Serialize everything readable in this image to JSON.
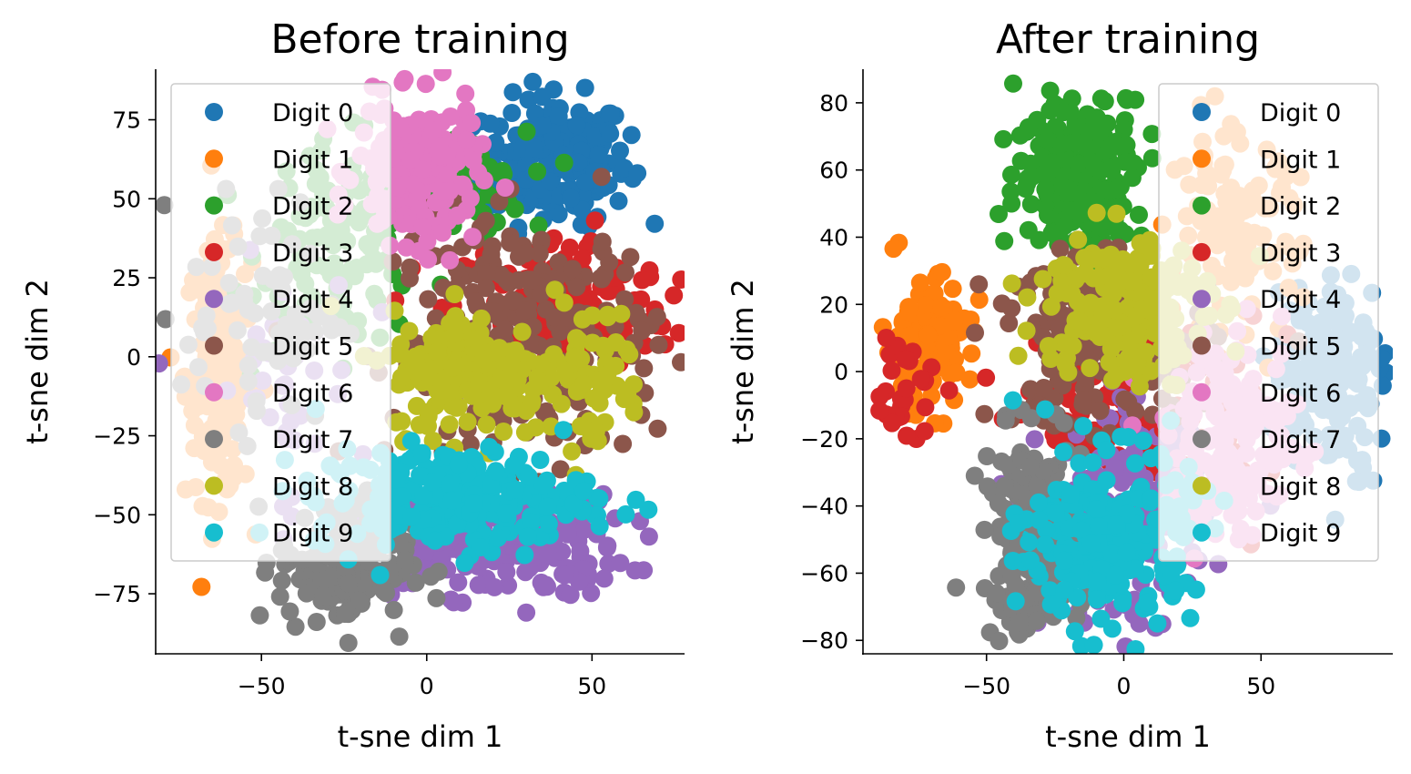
{
  "chart_data": [
    {
      "type": "scatter",
      "title": "Before training",
      "xlabel": "t-sne dim 1",
      "ylabel": "t-sne dim 2",
      "xlim": [
        -82,
        78
      ],
      "ylim": [
        -94,
        91
      ],
      "xticks": [
        {
          "v": -50,
          "label": "−50"
        },
        {
          "v": 0,
          "label": "0"
        },
        {
          "v": 50,
          "label": "50"
        }
      ],
      "yticks": [
        {
          "v": 75,
          "label": "75"
        },
        {
          "v": 50,
          "label": "50"
        },
        {
          "v": 25,
          "label": "25"
        },
        {
          "v": 0,
          "label": "0"
        },
        {
          "v": -25,
          "label": "−25"
        },
        {
          "v": -50,
          "label": "−50"
        },
        {
          "v": -75,
          "label": "−75"
        }
      ],
      "legend_position": "upper-left",
      "series": [
        {
          "name": "Digit 0",
          "color": "#1f77b4",
          "clusters": [
            {
              "cx": 39,
              "cy": 62,
              "sx": 11,
              "sy": 10,
              "n": 220
            }
          ]
        },
        {
          "name": "Digit 1",
          "color": "#ff7f0e",
          "clusters": [
            {
              "cx": -63,
              "cy": -5,
              "sx": 5,
              "sy": 20,
              "n": 170
            }
          ]
        },
        {
          "name": "Digit 2",
          "color": "#2ca02c",
          "clusters": [
            {
              "cx": -26,
              "cy": 35,
              "sx": 12,
              "sy": 16,
              "n": 130
            },
            {
              "cx": 10,
              "cy": 55,
              "sx": 10,
              "sy": 8,
              "n": 60
            }
          ]
        },
        {
          "name": "Digit 3",
          "color": "#d62728",
          "clusters": [
            {
              "cx": 40,
              "cy": 15,
              "sx": 17,
              "sy": 12,
              "n": 180
            }
          ]
        },
        {
          "name": "Digit 4",
          "color": "#9467bd",
          "clusters": [
            {
              "cx": 20,
              "cy": -60,
              "sx": 20,
              "sy": 8,
              "n": 200
            },
            {
              "cx": -45,
              "cy": -10,
              "sx": 12,
              "sy": 20,
              "n": 40
            }
          ]
        },
        {
          "name": "Digit 5",
          "color": "#8c564b",
          "clusters": [
            {
              "cx": 30,
              "cy": 5,
              "sx": 20,
              "sy": 20,
              "n": 240
            }
          ]
        },
        {
          "name": "Digit 6",
          "color": "#e377c2",
          "clusters": [
            {
              "cx": -3,
              "cy": 58,
              "sx": 9,
              "sy": 11,
              "n": 200
            }
          ]
        },
        {
          "name": "Digit 7",
          "color": "#7f7f7f",
          "clusters": [
            {
              "cx": -25,
              "cy": -65,
              "sx": 10,
              "sy": 11,
              "n": 170
            },
            {
              "cx": -50,
              "cy": 15,
              "sx": 12,
              "sy": 18,
              "n": 70
            }
          ]
        },
        {
          "name": "Digit 8",
          "color": "#bcbd22",
          "clusters": [
            {
              "cx": 15,
              "cy": -5,
              "sx": 13,
              "sy": 10,
              "n": 200
            },
            {
              "cx": 50,
              "cy": -5,
              "sx": 8,
              "sy": 12,
              "n": 50
            }
          ]
        },
        {
          "name": "Digit 9",
          "color": "#17becf",
          "clusters": [
            {
              "cx": 8,
              "cy": -45,
              "sx": 21,
              "sy": 8,
              "n": 240
            }
          ]
        }
      ]
    },
    {
      "type": "scatter",
      "title": "After training",
      "xlabel": "t-sne dim 1",
      "ylabel": "t-sne dim 2",
      "xlim": [
        -95,
        98
      ],
      "ylim": [
        -84,
        90
      ],
      "xticks": [
        {
          "v": -50,
          "label": "−50"
        },
        {
          "v": 0,
          "label": "0"
        },
        {
          "v": 50,
          "label": "50"
        }
      ],
      "yticks": [
        {
          "v": 80,
          "label": "80"
        },
        {
          "v": 60,
          "label": "60"
        },
        {
          "v": 40,
          "label": "40"
        },
        {
          "v": 20,
          "label": "20"
        },
        {
          "v": 0,
          "label": "0"
        },
        {
          "v": -20,
          "label": "−20"
        },
        {
          "v": -40,
          "label": "−40"
        },
        {
          "v": -60,
          "label": "−60"
        },
        {
          "v": -80,
          "label": "−80"
        }
      ],
      "legend_position": "upper-right",
      "series": [
        {
          "name": "Digit 0",
          "color": "#1f77b4",
          "clusters": [
            {
              "cx": 75,
              "cy": 0,
              "sx": 10,
              "sy": 15,
              "n": 160
            }
          ]
        },
        {
          "name": "Digit 1",
          "color": "#ff7f0e",
          "clusters": [
            {
              "cx": -72,
              "cy": 8,
              "sx": 8,
              "sy": 10,
              "n": 120
            },
            {
              "cx": 40,
              "cy": 40,
              "sx": 12,
              "sy": 15,
              "n": 120
            }
          ]
        },
        {
          "name": "Digit 2",
          "color": "#2ca02c",
          "clusters": [
            {
              "cx": -15,
              "cy": 60,
              "sx": 12,
              "sy": 12,
              "n": 220
            }
          ]
        },
        {
          "name": "Digit 3",
          "color": "#d62728",
          "clusters": [
            {
              "cx": 10,
              "cy": -15,
              "sx": 20,
              "sy": 15,
              "n": 140
            },
            {
              "cx": -80,
              "cy": -5,
              "sx": 6,
              "sy": 8,
              "n": 30
            }
          ]
        },
        {
          "name": "Digit 4",
          "color": "#9467bd",
          "clusters": [
            {
              "cx": 0,
              "cy": -45,
              "sx": 15,
              "sy": 15,
              "n": 180
            }
          ]
        },
        {
          "name": "Digit 5",
          "color": "#8c564b",
          "clusters": [
            {
              "cx": -8,
              "cy": 8,
              "sx": 20,
              "sy": 12,
              "n": 200
            }
          ]
        },
        {
          "name": "Digit 6",
          "color": "#e377c2",
          "clusters": [
            {
              "cx": 40,
              "cy": -20,
              "sx": 12,
              "sy": 15,
              "n": 160
            }
          ]
        },
        {
          "name": "Digit 7",
          "color": "#7f7f7f",
          "clusters": [
            {
              "cx": -33,
              "cy": -50,
              "sx": 9,
              "sy": 15,
              "n": 200
            }
          ]
        },
        {
          "name": "Digit 8",
          "color": "#bcbd22",
          "clusters": [
            {
              "cx": 0,
              "cy": 20,
              "sx": 15,
              "sy": 12,
              "n": 200
            }
          ]
        },
        {
          "name": "Digit 9",
          "color": "#17becf",
          "clusters": [
            {
              "cx": -5,
              "cy": -50,
              "sx": 15,
              "sy": 13,
              "n": 240
            }
          ]
        }
      ]
    }
  ]
}
